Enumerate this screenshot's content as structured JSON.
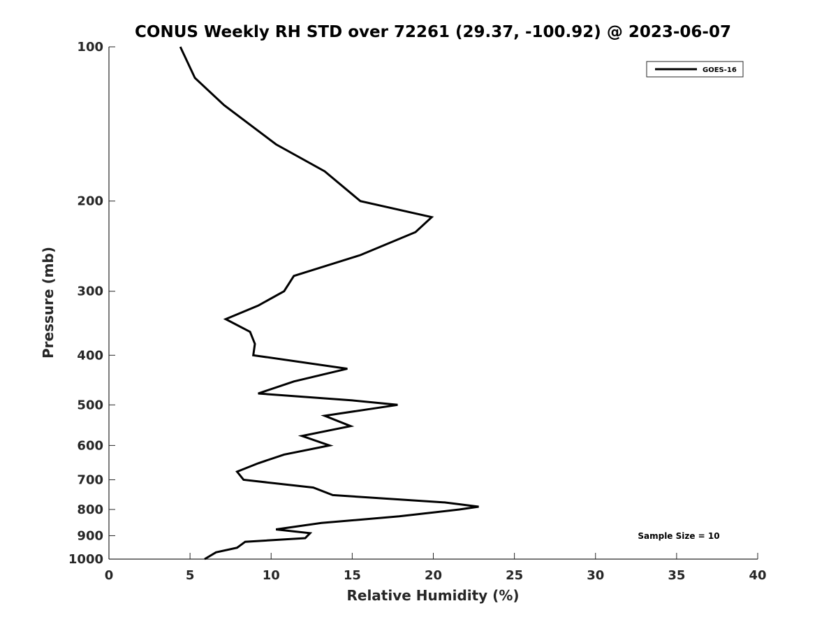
{
  "chart_data": {
    "type": "line",
    "title": "CONUS Weekly RH STD over 72261 (29.37, -100.92) @ 2023-06-07",
    "xlabel": "Relative Humidity (%)",
    "ylabel": "Pressure (mb)",
    "xlim": [
      0,
      40
    ],
    "ylim": [
      1000,
      100
    ],
    "yscale": "log",
    "y_reversed": true,
    "x_ticks": [
      0,
      5,
      10,
      15,
      20,
      25,
      30,
      35,
      40
    ],
    "y_ticks": [
      100,
      200,
      300,
      400,
      500,
      600,
      700,
      800,
      900,
      1000
    ],
    "grid": false,
    "legend_position": "top-right",
    "annotation": "Sample Size = 10",
    "series": [
      {
        "name": "GOES-16",
        "color": "#000000",
        "x": [
          4.4,
          5.3,
          7.1,
          10.3,
          13.3,
          15.5,
          19.9,
          18.9,
          15.5,
          11.4,
          10.8,
          9.2,
          7.2,
          8.7,
          9.0,
          8.9,
          14.7,
          11.4,
          9.2,
          15.0,
          17.8,
          13.3,
          14.9,
          11.9,
          13.6,
          10.8,
          9.2,
          7.9,
          8.3,
          12.6,
          13.8,
          20.7,
          22.8,
          21.6,
          17.9,
          13.1,
          10.3,
          12.4,
          12.1,
          8.4,
          7.9,
          6.6,
          5.9
        ],
        "y": [
          100,
          115,
          130,
          155,
          175,
          200,
          215,
          230,
          255,
          280,
          300,
          320,
          340,
          360,
          380,
          400,
          425,
          450,
          475,
          490,
          500,
          525,
          550,
          575,
          600,
          625,
          650,
          675,
          700,
          725,
          750,
          775,
          790,
          800,
          825,
          850,
          875,
          890,
          910,
          925,
          950,
          970,
          1000
        ]
      }
    ]
  }
}
